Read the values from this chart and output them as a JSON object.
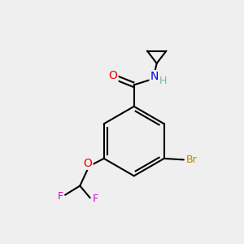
{
  "background_color": "#efefef",
  "atom_colors": {
    "C": "#000000",
    "H": "#7ab5b0",
    "N": "#0000ee",
    "O": "#ee0000",
    "F": "#dd00dd",
    "Br": "#bb8800"
  },
  "bond_color": "#000000",
  "bond_width": 1.5,
  "figsize": [
    3.0,
    3.0
  ],
  "dpi": 100
}
